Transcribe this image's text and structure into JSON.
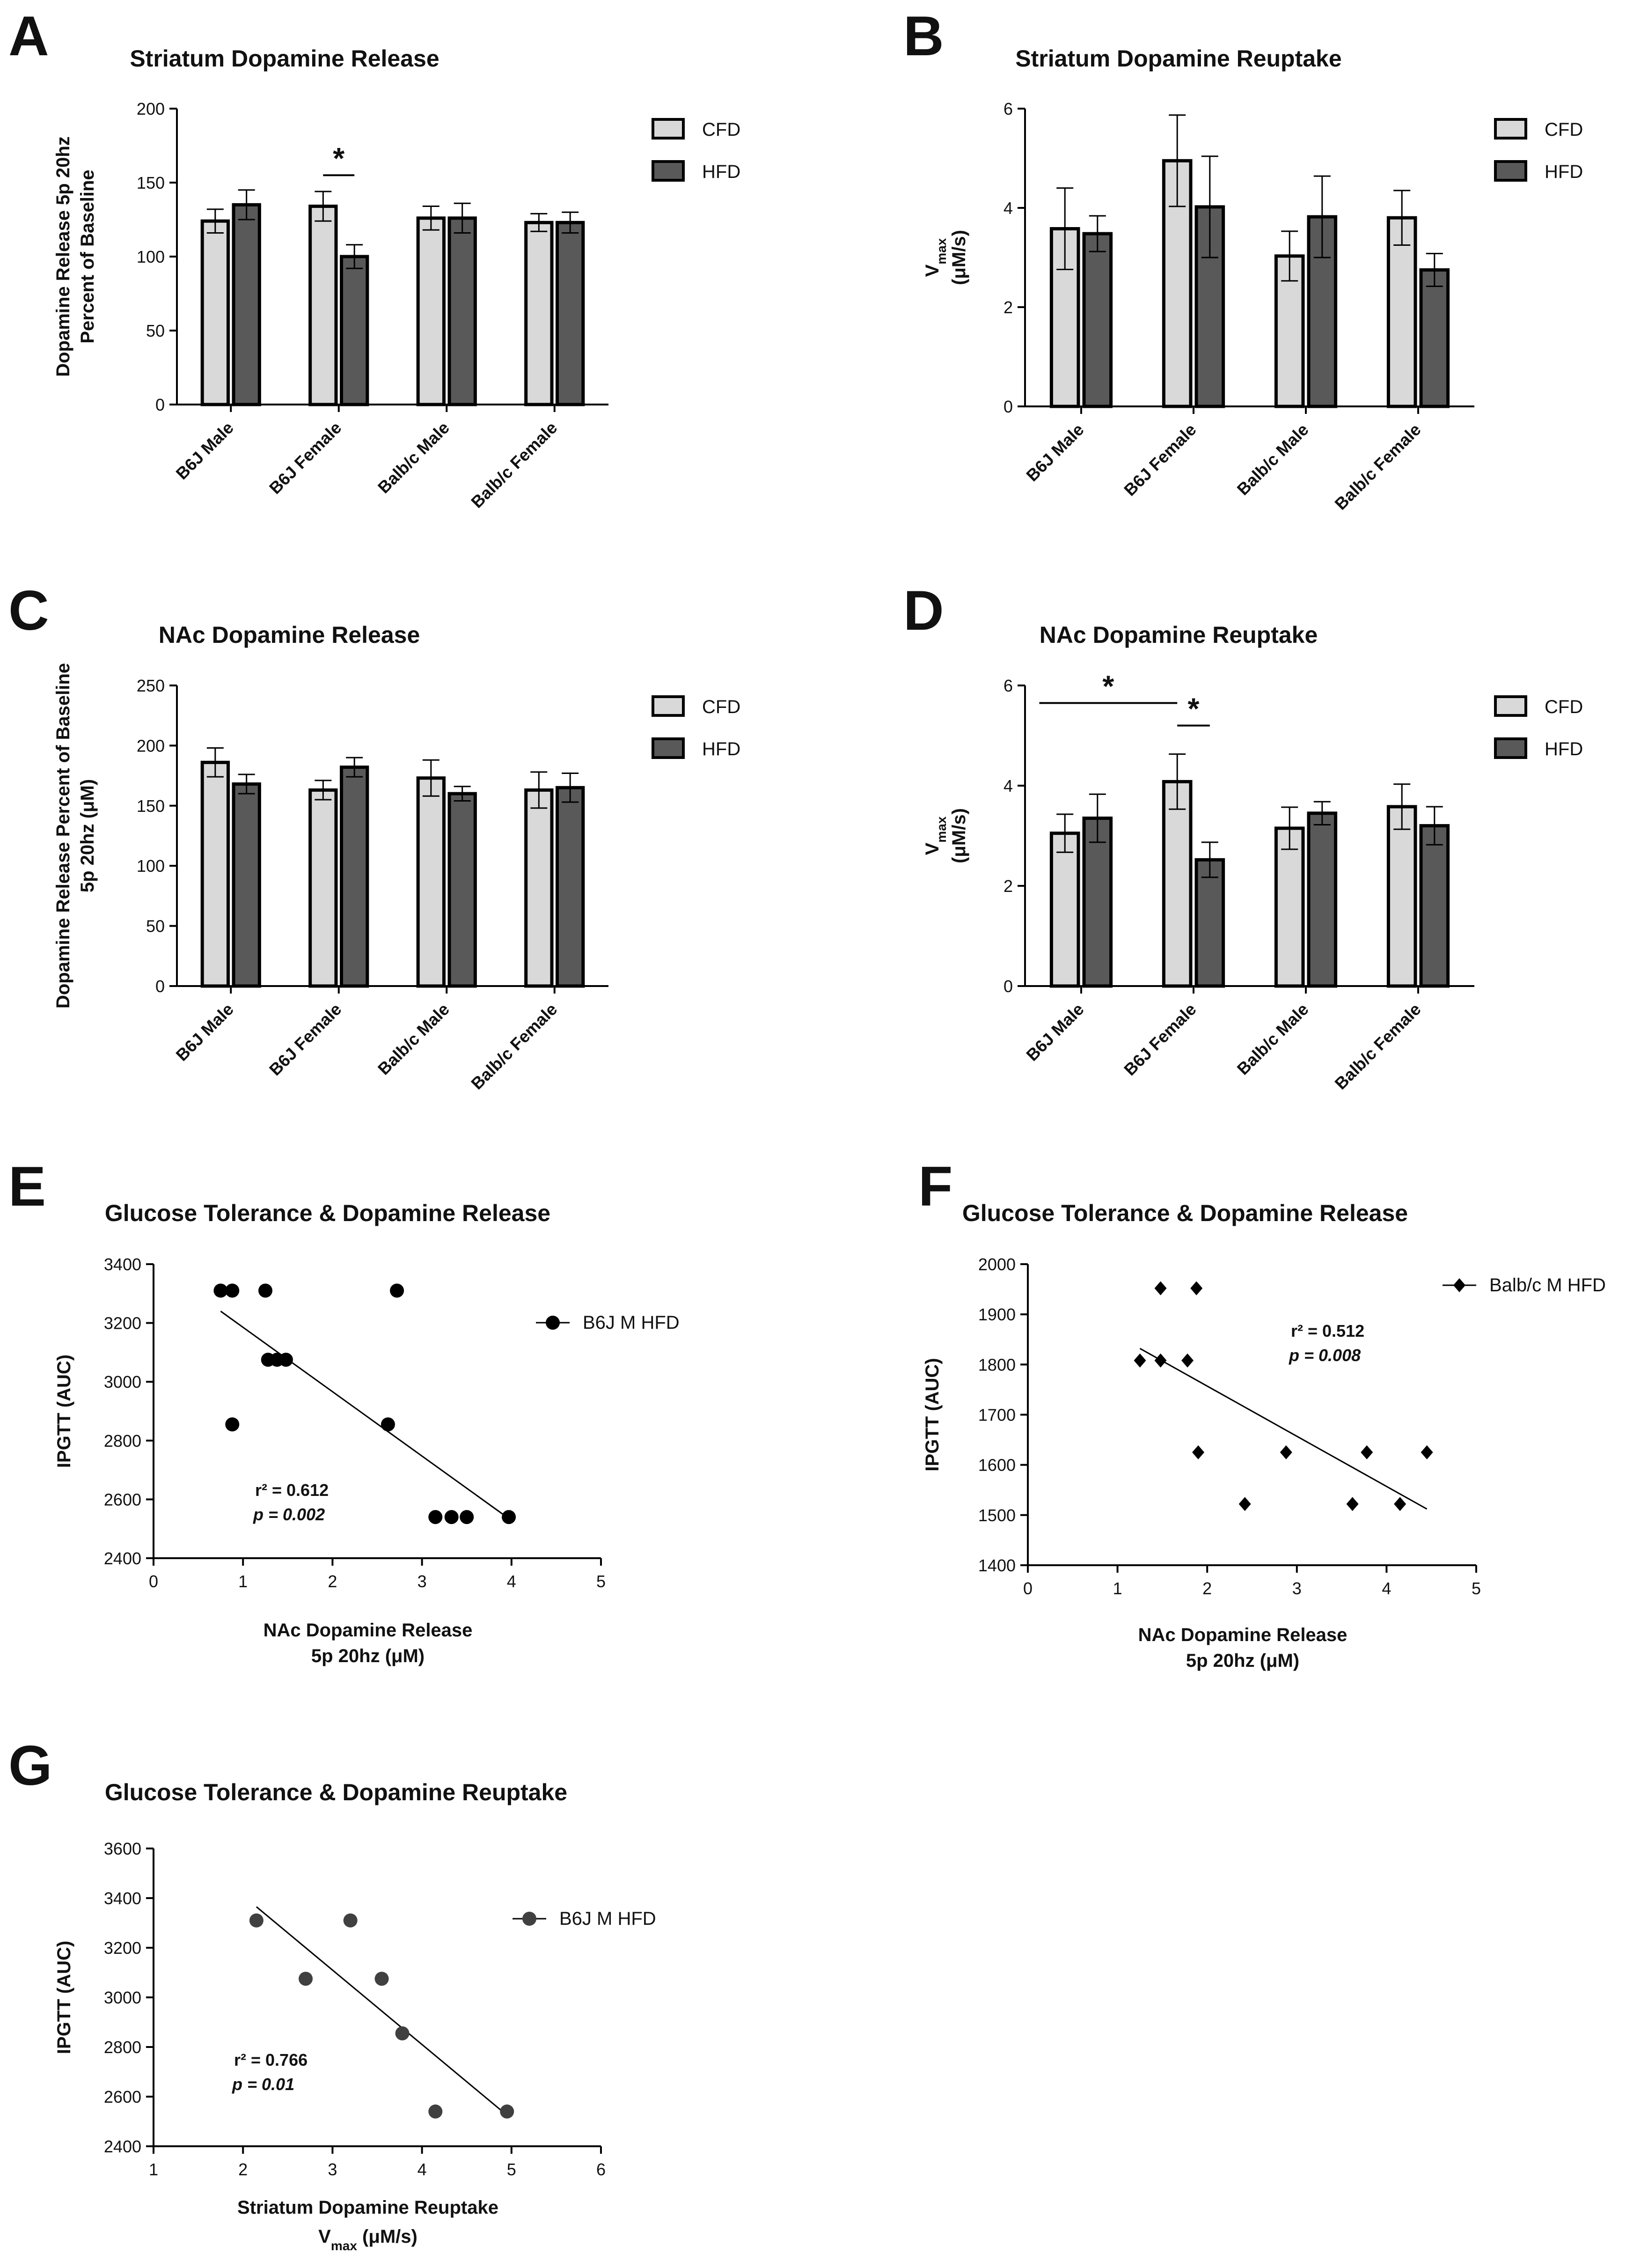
{
  "figure": {
    "panels": [
      {
        "letter": "A"
      },
      {
        "letter": "B"
      },
      {
        "letter": "C"
      },
      {
        "letter": "D"
      },
      {
        "letter": "E"
      },
      {
        "letter": "F"
      },
      {
        "letter": "G"
      }
    ]
  },
  "colors": {
    "cfd_fill": "#d9d9d9",
    "hfd_fill": "#595959",
    "bar_stroke": "#000000",
    "point_fill": "#000000",
    "point_fill_g": "#404040"
  },
  "chart_data": [
    {
      "panel": "A",
      "type": "bar",
      "title": "Striatum Dopamine Release",
      "ylabel_lines": [
        "Dopamine Release 5p 20hz",
        "Percent of Baseline"
      ],
      "xlabel": "",
      "categories": [
        "B6J Male",
        "B6J Female",
        "Balb/c Male",
        "Balb/c Female"
      ],
      "series": [
        {
          "name": "CFD",
          "values": [
            124,
            134,
            126,
            123
          ],
          "errors": [
            8,
            10,
            8,
            6
          ]
        },
        {
          "name": "HFD",
          "values": [
            135,
            100,
            126,
            123
          ],
          "errors": [
            10,
            8,
            10,
            7
          ]
        }
      ],
      "ylim": [
        0,
        200
      ],
      "yticks": [
        0,
        50,
        100,
        150,
        200
      ],
      "significance": [
        {
          "category": 1,
          "span": "pair",
          "y": 155,
          "label": "*"
        }
      ],
      "legend_position": "top-right",
      "grid": false
    },
    {
      "panel": "B",
      "type": "bar",
      "title": "Striatum Dopamine Reuptake",
      "ylabel_lines": [
        "Vmax",
        "(μM/s)"
      ],
      "xlabel": "",
      "categories": [
        "B6J Male",
        "B6J Female",
        "Balb/c Male",
        "Balb/c Female"
      ],
      "series": [
        {
          "name": "CFD",
          "values": [
            3.58,
            4.95,
            3.03,
            3.8
          ],
          "errors": [
            0.82,
            0.92,
            0.5,
            0.55
          ]
        },
        {
          "name": "HFD",
          "values": [
            3.48,
            4.02,
            3.82,
            2.75
          ],
          "errors": [
            0.36,
            1.02,
            0.82,
            0.33
          ]
        }
      ],
      "ylim": [
        0,
        6
      ],
      "yticks": [
        0,
        2,
        4,
        6
      ],
      "significance": [],
      "legend_position": "top-right",
      "grid": false
    },
    {
      "panel": "C",
      "type": "bar",
      "title": "NAc Dopamine Release",
      "ylabel_lines": [
        "Dopamine Release Percent of Baseline",
        "5p 20hz (μM)"
      ],
      "xlabel": "",
      "categories": [
        "B6J Male",
        "B6J Female",
        "Balb/c Male",
        "Balb/c Female"
      ],
      "series": [
        {
          "name": "CFD",
          "values": [
            186,
            163,
            173,
            163
          ],
          "errors": [
            12,
            8,
            15,
            15
          ]
        },
        {
          "name": "HFD",
          "values": [
            168,
            182,
            160,
            165
          ],
          "errors": [
            8,
            8,
            6,
            12
          ]
        }
      ],
      "ylim": [
        0,
        250
      ],
      "yticks": [
        0,
        50,
        100,
        150,
        200,
        250
      ],
      "significance": [],
      "legend_position": "top-right",
      "grid": false
    },
    {
      "panel": "D",
      "type": "bar",
      "title": "NAc Dopamine Reuptake",
      "ylabel_lines": [
        "Vmax",
        "(μM/s)"
      ],
      "xlabel": "",
      "categories": [
        "B6J Male",
        "B6J Female",
        "Balb/c Male",
        "Balb/c Female"
      ],
      "series": [
        {
          "name": "CFD",
          "values": [
            3.05,
            4.08,
            3.15,
            3.58
          ],
          "errors": [
            0.38,
            0.55,
            0.42,
            0.45
          ]
        },
        {
          "name": "HFD",
          "values": [
            3.35,
            2.52,
            3.45,
            3.2
          ],
          "errors": [
            0.48,
            0.35,
            0.23,
            0.38
          ]
        }
      ],
      "ylim": [
        0,
        6
      ],
      "yticks": [
        0,
        2,
        4,
        6
      ],
      "significance": [
        {
          "from_category": 0,
          "from_series": 0,
          "to_category": 1,
          "to_series": 0,
          "y": 5.65,
          "label": "*"
        },
        {
          "category": 1,
          "span": "pair",
          "y": 5.2,
          "label": "*"
        }
      ],
      "legend_position": "top-right",
      "grid": false
    },
    {
      "panel": "E",
      "type": "scatter",
      "title": "Glucose Tolerance & Dopamine Release",
      "xlabel_lines": [
        "NAc Dopamine Release",
        "5p 20hz (μM)"
      ],
      "ylabel": "IPGTT (AUC)",
      "series": [
        {
          "name": "B6J M HFD",
          "marker": "circle",
          "x": [
            0.75,
            0.88,
            1.25,
            2.72,
            1.28,
            1.38,
            1.48,
            0.88,
            2.62,
            3.15,
            3.33,
            3.5,
            3.97
          ],
          "y": [
            3310,
            3310,
            3310,
            3310,
            3075,
            3075,
            3075,
            2855,
            2855,
            2540,
            2540,
            2540,
            2540
          ]
        }
      ],
      "regression": {
        "x": [
          0.75,
          3.97
        ],
        "y": [
          3240,
          2535
        ]
      },
      "stats": {
        "r2": "r² = 0.612",
        "p": "p = 0.002"
      },
      "xlim": [
        0,
        5
      ],
      "ylim": [
        2400,
        3400
      ],
      "xticks": [
        0,
        1,
        2,
        3,
        4,
        5
      ],
      "yticks": [
        2400,
        2600,
        2800,
        3000,
        3200,
        3400
      ],
      "legend_position": "top-right",
      "grid": false
    },
    {
      "panel": "F",
      "type": "scatter",
      "title": "Glucose Tolerance & Dopamine Release",
      "xlabel_lines": [
        "NAc Dopamine Release",
        "5p 20hz (μM)"
      ],
      "ylabel": "IPGTT (AUC)",
      "series": [
        {
          "name": "Balb/c M HFD",
          "marker": "diamond",
          "x": [
            1.48,
            1.88,
            1.25,
            1.48,
            1.78,
            1.9,
            2.88,
            3.78,
            4.45,
            2.42,
            3.62,
            4.15
          ],
          "y": [
            1952,
            1952,
            1808,
            1808,
            1808,
            1625,
            1625,
            1625,
            1625,
            1522,
            1522,
            1522
          ]
        }
      ],
      "regression": {
        "x": [
          1.25,
          4.45
        ],
        "y": [
          1832,
          1512
        ]
      },
      "stats": {
        "r2": "r² = 0.512",
        "p": "p = 0.008"
      },
      "xlim": [
        0,
        5
      ],
      "ylim": [
        1400,
        2000
      ],
      "xticks": [
        0,
        1,
        2,
        3,
        4,
        5
      ],
      "yticks": [
        1400,
        1500,
        1600,
        1700,
        1800,
        1900,
        2000
      ],
      "legend_position": "top-right",
      "grid": false
    },
    {
      "panel": "G",
      "type": "scatter",
      "title": "Glucose Tolerance & Dopamine Reuptake",
      "xlabel_lines": [
        "Striatum Dopamine Reuptake",
        "Vmax (μM/s)"
      ],
      "ylabel": "IPGTT (AUC)",
      "series": [
        {
          "name": "B6J M HFD",
          "marker": "circle",
          "x": [
            2.15,
            3.2,
            2.7,
            3.55,
            3.78,
            4.15,
            4.95
          ],
          "y": [
            3310,
            3310,
            3075,
            3075,
            2855,
            2540,
            2540
          ]
        }
      ],
      "regression": {
        "x": [
          2.15,
          4.95
        ],
        "y": [
          3365,
          2525
        ]
      },
      "stats": {
        "r2": "r² = 0.766",
        "p": "p = 0.01"
      },
      "xlim": [
        1,
        6
      ],
      "ylim": [
        2400,
        3600
      ],
      "xticks": [
        1,
        2,
        3,
        4,
        5,
        6
      ],
      "yticks": [
        2400,
        2600,
        2800,
        3000,
        3200,
        3400,
        3600
      ],
      "legend_position": "top-right",
      "grid": false
    }
  ]
}
